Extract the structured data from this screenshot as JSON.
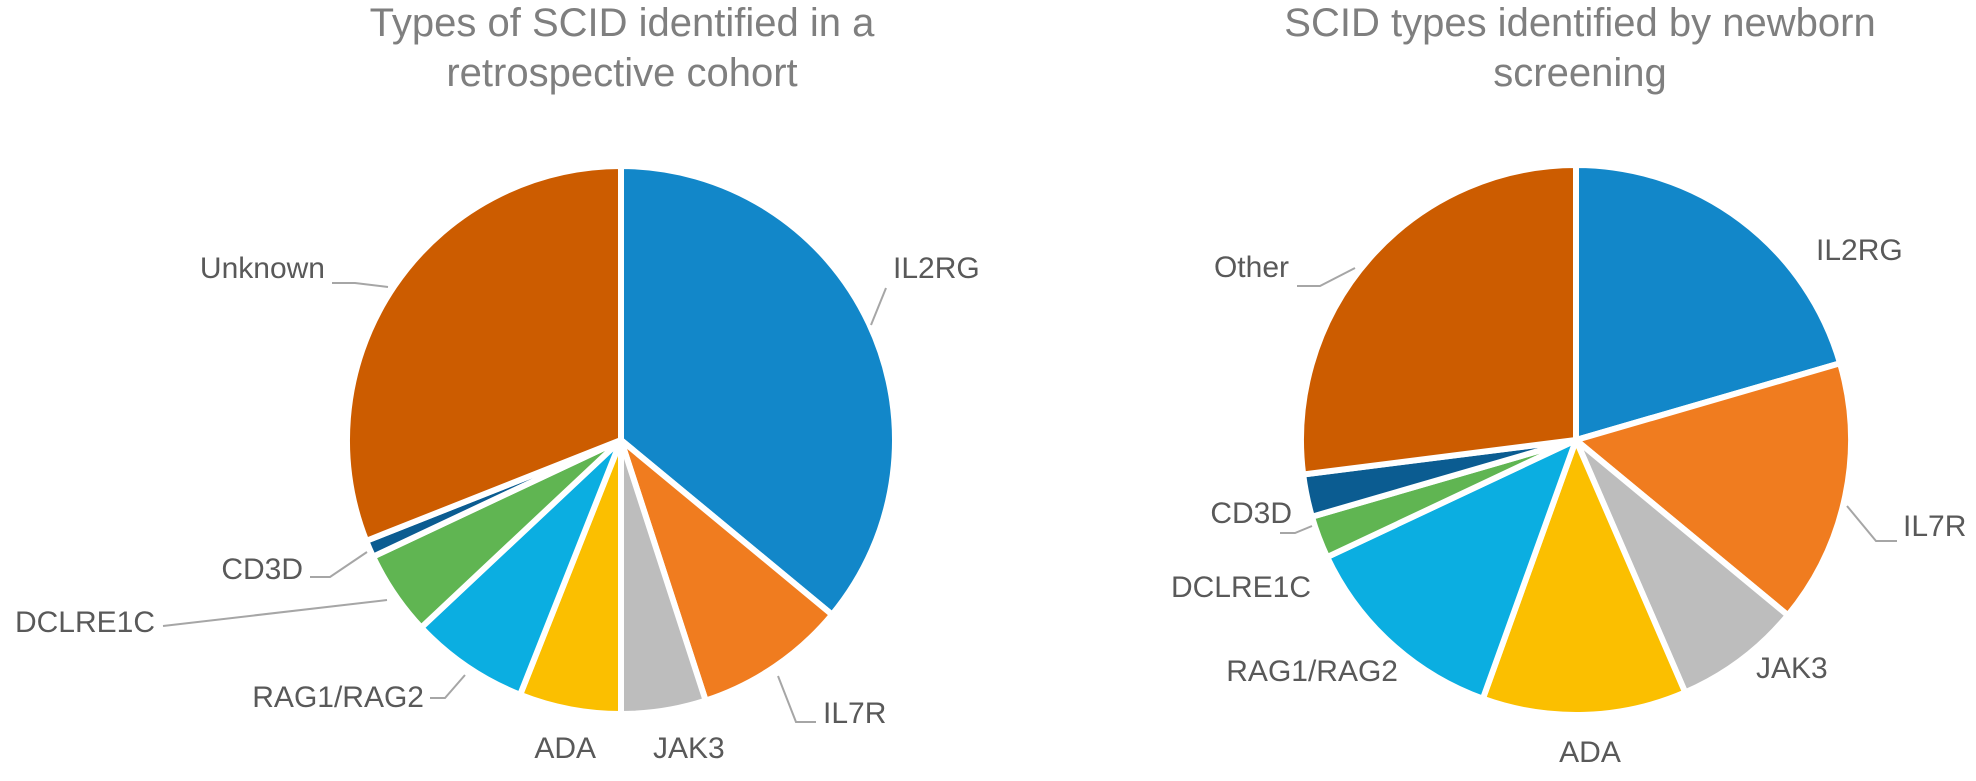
{
  "chart_data": [
    {
      "type": "pie",
      "title": "Types of SCID identified in a retrospective cohort",
      "slices": [
        {
          "label": "IL2RG",
          "value": 36.0,
          "color": "#1287C9"
        },
        {
          "label": "IL7R",
          "value": 9.0,
          "color": "#F07C1F"
        },
        {
          "label": "JAK3",
          "value": 5.0,
          "color": "#BDBDBD"
        },
        {
          "label": "ADA",
          "value": 6.0,
          "color": "#FBBF00"
        },
        {
          "label": "RAG1/RAG2",
          "value": 7.0,
          "color": "#0BAEE1"
        },
        {
          "label": "DCLRE1C",
          "value": 5.0,
          "color": "#60B552"
        },
        {
          "label": "CD3D",
          "value": 1.0,
          "color": "#0B5C91"
        },
        {
          "label": "Unknown",
          "value": 31.0,
          "color": "#CC5C00"
        }
      ]
    },
    {
      "type": "pie",
      "title": "SCID types identified by newborn screening",
      "slices": [
        {
          "label": "IL2RG",
          "value": 20.5,
          "color": "#1287C9"
        },
        {
          "label": "IL7R",
          "value": 15.5,
          "color": "#F07C1F"
        },
        {
          "label": "JAK3",
          "value": 7.5,
          "color": "#BDBDBD"
        },
        {
          "label": "ADA",
          "value": 12.0,
          "color": "#FBBF00"
        },
        {
          "label": "RAG1/RAG2",
          "value": 12.5,
          "color": "#0BAEE1"
        },
        {
          "label": "DCLRE1C",
          "value": 2.5,
          "color": "#60B552"
        },
        {
          "label": "CD3D",
          "value": 2.5,
          "color": "#0B5C91"
        },
        {
          "label": "Other",
          "value": 27.0,
          "color": "#CC5C00"
        }
      ]
    }
  ]
}
